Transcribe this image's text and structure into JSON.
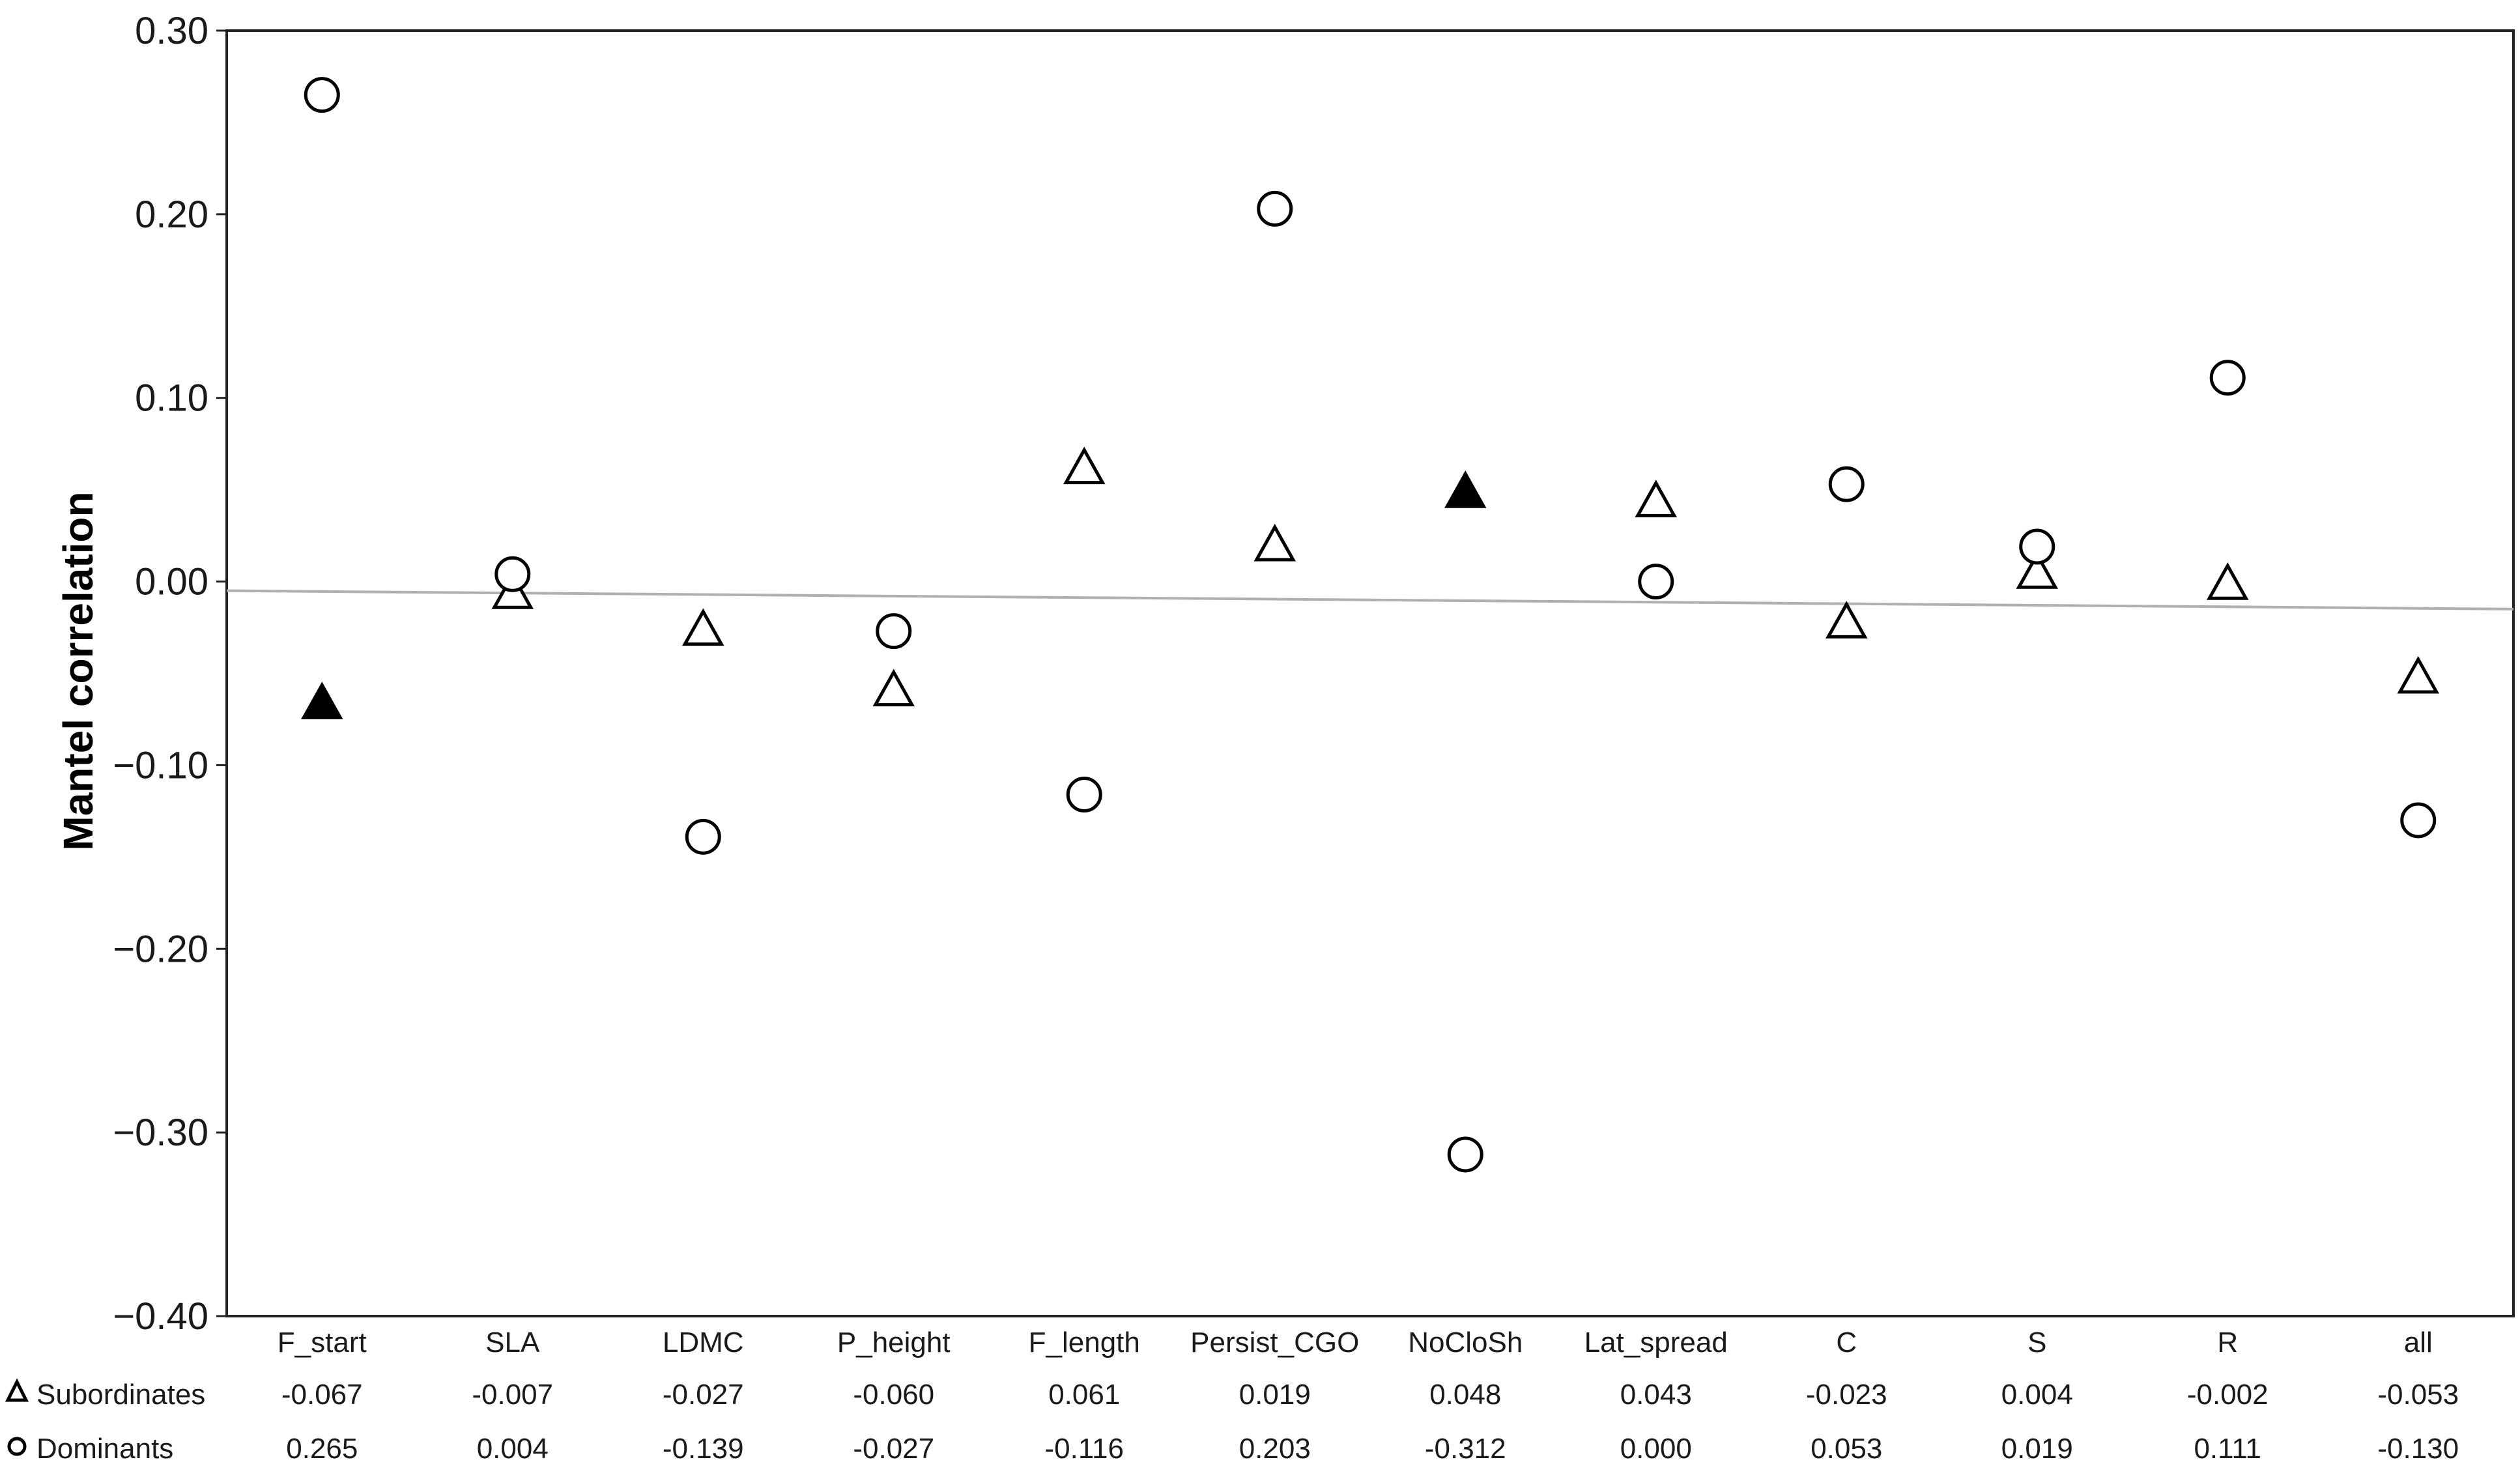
{
  "chart_data": {
    "type": "scatter",
    "title": "",
    "xlabel": "",
    "ylabel": "Mantel correlation",
    "ylim": [
      -0.4,
      0.3
    ],
    "yticks": [
      "0.30",
      "0.20",
      "0.10",
      "0.00",
      "−0.10",
      "−0.20",
      "−0.30",
      "−0.40"
    ],
    "categories": [
      "F_start",
      "SLA",
      "LDMC",
      "P_height",
      "F_length",
      "Persist_CGO",
      "NoCloSh",
      "Lat_spread",
      "C",
      "S",
      "R",
      "all"
    ],
    "series": [
      {
        "name": "Subordinates",
        "marker": "triangle",
        "values": [
          -0.067,
          -0.007,
          -0.027,
          -0.06,
          0.061,
          0.019,
          0.048,
          0.043,
          -0.023,
          0.004,
          -0.002,
          -0.053
        ],
        "labels": [
          "-0.067",
          "-0.007",
          "-0.027",
          "-0.060",
          "0.061",
          "0.019",
          "0.048",
          "0.043",
          "-0.023",
          "0.004",
          "-0.002",
          "-0.053"
        ],
        "filled": [
          true,
          false,
          false,
          false,
          false,
          false,
          true,
          false,
          false,
          false,
          false,
          false
        ]
      },
      {
        "name": "Dominants",
        "marker": "circle",
        "values": [
          0.265,
          0.004,
          -0.139,
          -0.027,
          -0.116,
          0.203,
          -0.312,
          0.0,
          0.053,
          0.019,
          0.111,
          -0.13
        ],
        "labels": [
          "0.265",
          "0.004",
          "-0.139",
          "-0.027",
          "-0.116",
          "0.203",
          "-0.312",
          "0.000",
          "0.053",
          "0.019",
          "0.111",
          "-0.130"
        ],
        "filled": [
          false,
          false,
          false,
          false,
          false,
          false,
          false,
          false,
          false,
          false,
          false,
          false
        ]
      }
    ],
    "reference_line": {
      "y_start": -0.005,
      "y_end": -0.015,
      "color": "#b0b0b0"
    },
    "grid": false,
    "legend": "bottom-left table rows"
  }
}
